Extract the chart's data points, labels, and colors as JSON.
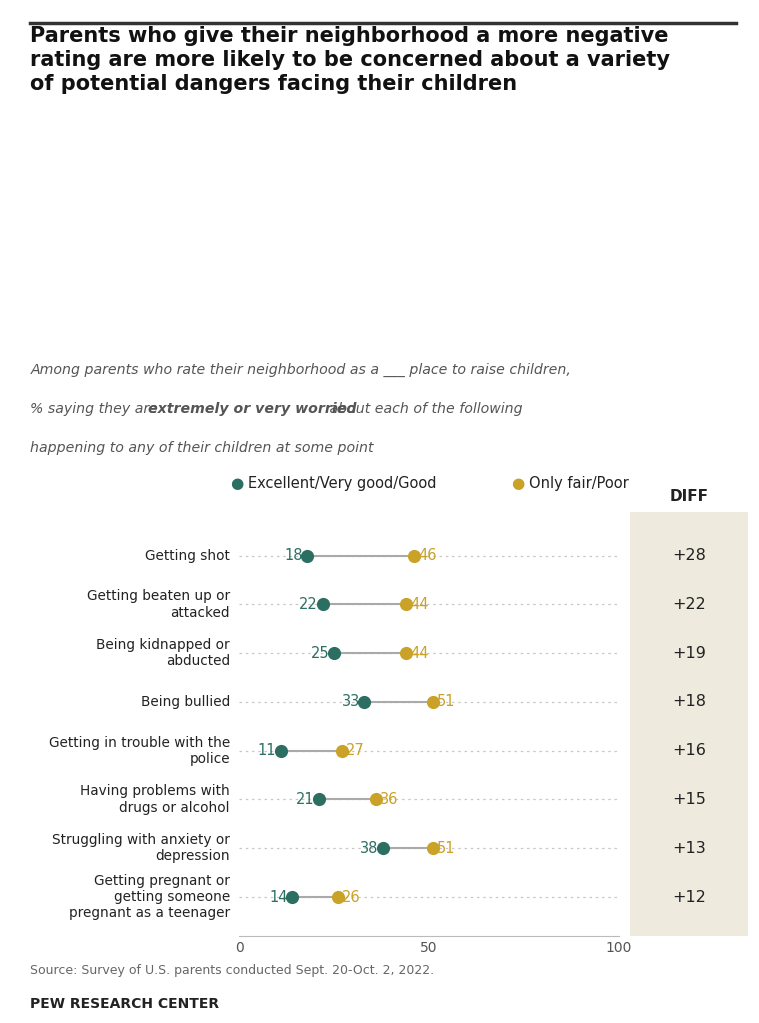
{
  "title": "Parents who give their neighborhood a more negative\nrating are more likely to be concerned about a variety\nof potential dangers facing their children",
  "categories": [
    "Getting shot",
    "Getting beaten up or\nattacked",
    "Being kidnapped or\nabducted",
    "Being bullied",
    "Getting in trouble with the\npolice",
    "Having problems with\ndrugs or alcohol",
    "Struggling with anxiety or\ndepression",
    "Getting pregnant or\ngetting someone\npregnant as a teenager"
  ],
  "good_values": [
    18,
    22,
    25,
    33,
    11,
    21,
    38,
    14
  ],
  "poor_values": [
    46,
    44,
    44,
    51,
    27,
    36,
    51,
    26
  ],
  "diff_values": [
    "+28",
    "+22",
    "+19",
    "+18",
    "+16",
    "+15",
    "+13",
    "+12"
  ],
  "good_color": "#2d6e63",
  "poor_color": "#c9a227",
  "legend_good": "Excellent/Very good/Good",
  "legend_poor": "Only fair/Poor",
  "diff_label": "DIFF",
  "source": "Source: Survey of U.S. parents conducted Sept. 20-Oct. 2, 2022.",
  "footer": "PEW RESEARCH CENTER",
  "bg_white": "#ffffff",
  "bg_shaded": "#eeeade",
  "xmin": 0,
  "xmax": 100,
  "xticks": [
    0,
    50,
    100
  ]
}
